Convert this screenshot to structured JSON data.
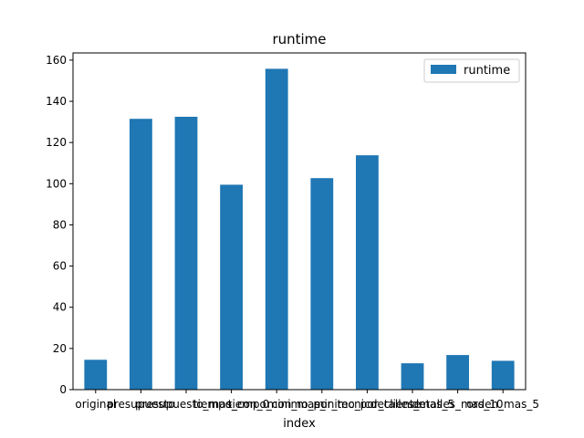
{
  "chart_data": {
    "type": "bar",
    "title": "runtime",
    "xlabel": "index",
    "ylabel": "",
    "categories": [
      "original",
      "presupuesto",
      "presupuesto_mas_",
      "tiempo_con_0",
      "tiempo_con_mas_",
      "minimo_por_tecnico",
      "minimo_por_cliente",
      "detalles_mas_5",
      "detalles_mas_10",
      "orden_mas_5"
    ],
    "series": [
      {
        "name": "runtime",
        "values": [
          14.5,
          131.5,
          132.5,
          99.5,
          155.8,
          102.7,
          113.8,
          12.8,
          16.8,
          14.0
        ]
      }
    ],
    "ylim": [
      0,
      163.5
    ],
    "yticks": [
      0,
      20,
      40,
      60,
      80,
      100,
      120,
      140,
      160
    ],
    "grid": false,
    "legend": "top-right",
    "bar_color": "#1f77b4"
  }
}
